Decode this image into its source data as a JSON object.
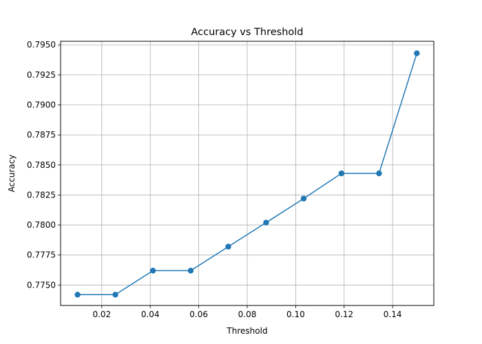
{
  "chart_data": {
    "type": "line",
    "title": "Accuracy vs Threshold",
    "xlabel": "Threshold",
    "ylabel": "Accuracy",
    "xlim": [
      0.003,
      0.157
    ],
    "ylim": [
      0.7733,
      0.7953
    ],
    "xticks": [
      0.02,
      0.04,
      0.06,
      0.08,
      0.1,
      0.12,
      0.14
    ],
    "xtick_labels": [
      "0.02",
      "0.04",
      "0.06",
      "0.08",
      "0.10",
      "0.12",
      "0.14"
    ],
    "yticks": [
      0.775,
      0.7775,
      0.78,
      0.7825,
      0.785,
      0.7875,
      0.79,
      0.7925,
      0.795
    ],
    "ytick_labels": [
      "0.7750",
      "0.7775",
      "0.7800",
      "0.7825",
      "0.7850",
      "0.7875",
      "0.7900",
      "0.7925",
      "0.7950"
    ],
    "grid": true,
    "legend": false,
    "color": "#1f77b4",
    "series": [
      {
        "x": [
          0.01,
          0.0256,
          0.0411,
          0.0567,
          0.0722,
          0.0878,
          0.1033,
          0.1189,
          0.1344,
          0.15
        ],
        "y": [
          0.7742,
          0.7742,
          0.7762,
          0.7762,
          0.7782,
          0.7802,
          0.7822,
          0.7843,
          0.7843,
          0.7943
        ]
      }
    ]
  }
}
